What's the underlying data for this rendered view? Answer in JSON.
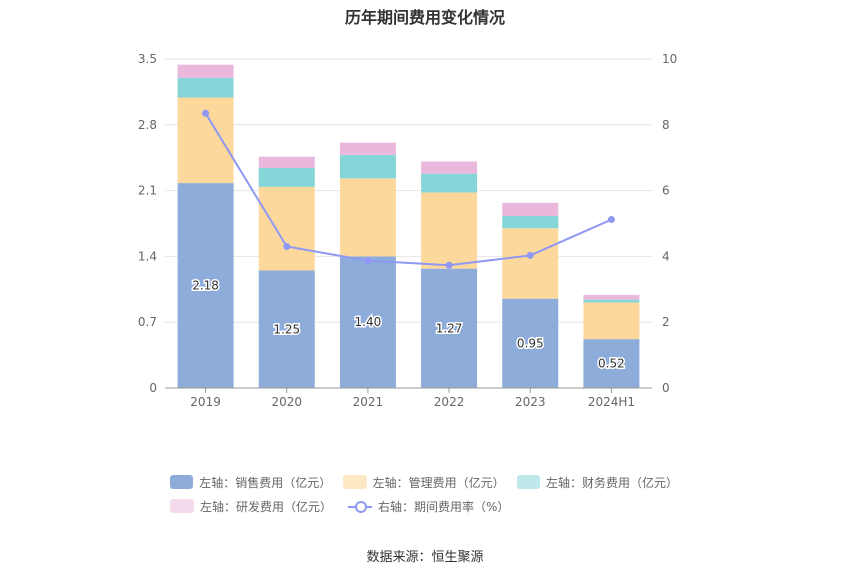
{
  "title": "历年期间费用变化情况",
  "source": "数据来源：恒生聚源",
  "chart_data": {
    "type": "bar",
    "stacked": true,
    "categories": [
      "2019",
      "2020",
      "2021",
      "2022",
      "2023",
      "2024H1"
    ],
    "y_left": {
      "ticks": [
        "0",
        "0.7",
        "1.4",
        "2.1",
        "2.8",
        "3.5"
      ],
      "ylim": [
        0,
        3.5
      ]
    },
    "y_right": {
      "ticks": [
        "0",
        "2",
        "4",
        "6",
        "8",
        "10"
      ],
      "ylim": [
        0,
        10
      ]
    },
    "grid": true,
    "legend_position": "bottom",
    "series": [
      {
        "name": "左轴：销售费用（亿元）",
        "axis": "left",
        "color": "#8eacda",
        "values": [
          2.18,
          1.25,
          1.4,
          1.27,
          0.95,
          0.52
        ],
        "labels": [
          "2.18",
          "1.25",
          "1.40",
          "1.27",
          "0.95",
          "0.52"
        ]
      },
      {
        "name": "左轴：管理费用（亿元）",
        "axis": "left",
        "color": "#fdd89d",
        "values": [
          0.91,
          0.89,
          0.83,
          0.81,
          0.75,
          0.39
        ]
      },
      {
        "name": "左轴：财务费用（亿元）",
        "axis": "left",
        "color": "#86d5d8",
        "values": [
          0.21,
          0.2,
          0.25,
          0.2,
          0.13,
          0.03
        ]
      },
      {
        "name": "左轴：研发费用（亿元）",
        "axis": "left",
        "color": "#ebb8dd",
        "values": [
          0.14,
          0.12,
          0.13,
          0.13,
          0.14,
          0.05
        ]
      },
      {
        "name": "右轴：期间费用率（%）",
        "axis": "right",
        "type": "line",
        "color": "#8f98f2",
        "values": [
          8.35,
          4.3,
          3.87,
          3.73,
          4.03,
          5.12
        ]
      }
    ]
  }
}
